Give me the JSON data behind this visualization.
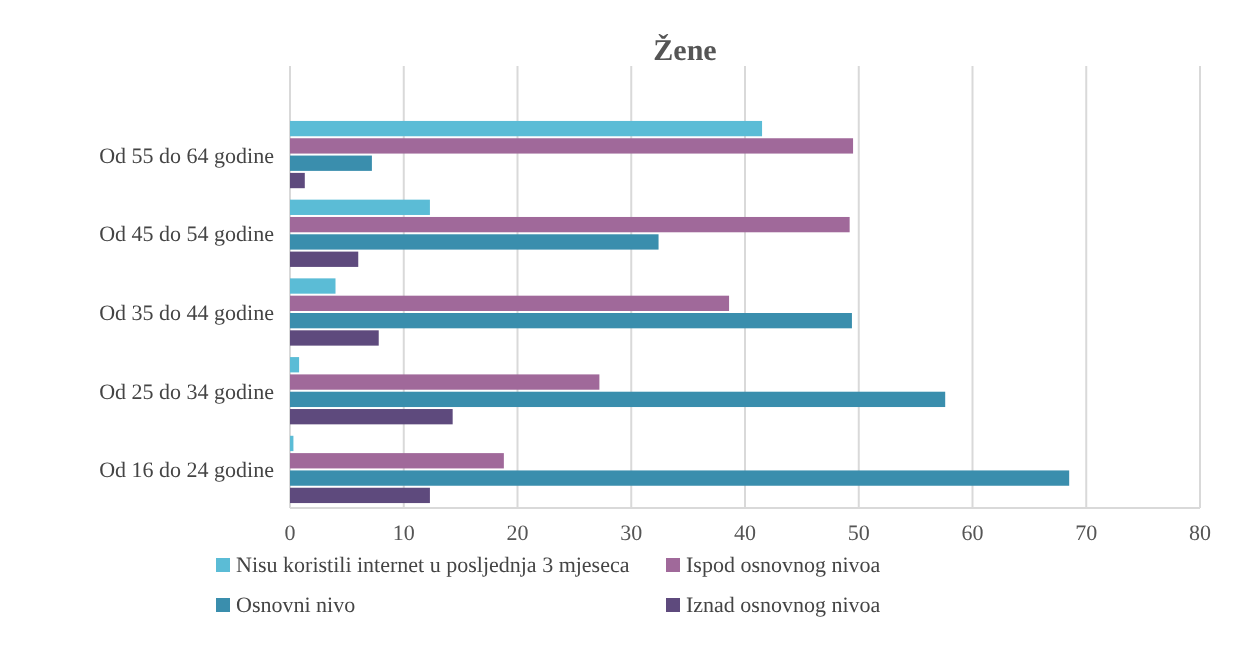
{
  "chart_data": {
    "type": "bar",
    "orientation": "horizontal",
    "title": "Žene",
    "categories": [
      "Od 55 do 64 godine",
      "Od 45 do 54 godine",
      "Od 35 do 44 godine",
      "Od 25 do 34 godine",
      "Od 16 do 24 godine"
    ],
    "series": [
      {
        "name": "Nisu koristili internet u posljednja 3 mjeseca",
        "color": "#5bbcd6",
        "values": [
          41.5,
          12.3,
          4,
          0.8,
          0.3
        ]
      },
      {
        "name": "Ispod osnovnog nivoa",
        "color": "#a0699a",
        "values": [
          49.5,
          49.2,
          38.6,
          27.2,
          18.8
        ]
      },
      {
        "name": "Osnovni nivo",
        "color": "#3a8ead",
        "values": [
          7.2,
          32.4,
          49.4,
          57.6,
          68.5
        ]
      },
      {
        "name": "Iznad osnovnog nivoa",
        "color": "#5e4a7d",
        "values": [
          1.3,
          6,
          7.8,
          14.3,
          12.3
        ]
      }
    ],
    "xlim": [
      0,
      80
    ],
    "xticks": [
      0,
      10,
      20,
      30,
      40,
      50,
      60,
      70,
      80
    ],
    "grid": "x",
    "legend": "bottom"
  }
}
